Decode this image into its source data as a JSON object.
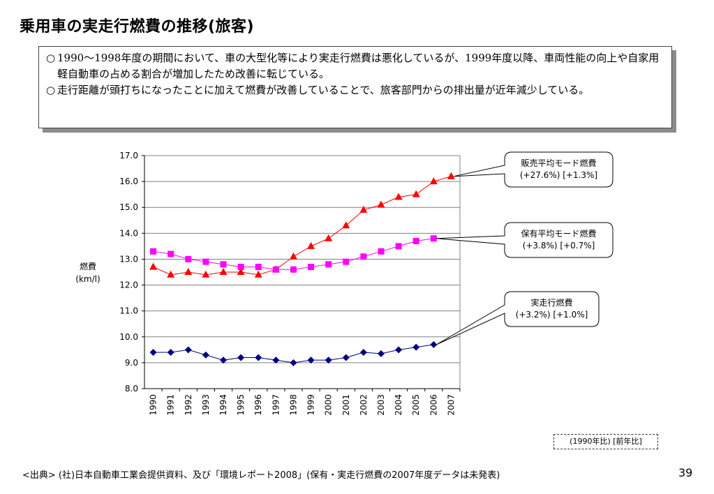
{
  "slide": {
    "title": "乗用車の実走行燃費の推移(旅客)",
    "notes": [
      {
        "mark": "○",
        "text": "1990～1998年度の期間において、車の大型化等により実走行燃費は悪化しているが、1999年度以降、車両性能の向上や自家用軽自動車の占める割合が増加したため改善に転じている。"
      },
      {
        "mark": "○",
        "text": "走行距離が頭打ちになったことに加えて燃費が改善していることで、旅客部門からの排出量が近年減少している。"
      }
    ],
    "legend_note": "(1990年比) [前年比]",
    "source": "<出典> (社)日本自動車工業会提供資料、及び「環境レポート2008」(保有・実走行燃費の2007年度データは未発表)",
    "page_number": "39"
  },
  "chart_data": {
    "type": "line",
    "ylabel": [
      "燃費",
      "(km/l)"
    ],
    "ylim": [
      8.0,
      17.0
    ],
    "yticks": [
      "8.0",
      "9.0",
      "10.0",
      "11.0",
      "12.0",
      "13.0",
      "14.0",
      "15.0",
      "16.0",
      "17.0"
    ],
    "grid": true,
    "x": [
      "1990",
      "1991",
      "1992",
      "1993",
      "1994",
      "1995",
      "1996",
      "1997",
      "1998",
      "1999",
      "2000",
      "2001",
      "2002",
      "2003",
      "2004",
      "2005",
      "2006",
      "2007"
    ],
    "series": [
      {
        "name": "販売平均モード燃費",
        "callout": [
          "販売平均モード燃費",
          "(+27.6%) [+1.3%]"
        ],
        "marker": "triangle",
        "color": "#ff0000",
        "marker_color": "#ff0000",
        "values": [
          12.7,
          12.4,
          12.5,
          12.4,
          12.5,
          12.5,
          12.4,
          12.6,
          13.1,
          13.5,
          13.8,
          14.3,
          14.9,
          15.1,
          15.4,
          15.5,
          16.0,
          16.2
        ]
      },
      {
        "name": "保有平均モード燃費",
        "callout": [
          "保有平均モード燃費",
          "(+3.8%) [+0.7%]"
        ],
        "marker": "square",
        "color": "#ff00ff",
        "marker_color": "#ff00ff",
        "values": [
          13.3,
          13.2,
          13.0,
          12.9,
          12.8,
          12.7,
          12.7,
          12.6,
          12.6,
          12.7,
          12.8,
          12.9,
          13.1,
          13.3,
          13.5,
          13.7,
          13.8,
          null
        ]
      },
      {
        "name": "実走行燃費",
        "callout": [
          "実走行燃費",
          "(+3.2%) [+1.0%]"
        ],
        "marker": "diamond",
        "color": "#000080",
        "marker_color": "#000080",
        "values": [
          9.4,
          9.4,
          9.5,
          9.3,
          9.1,
          9.2,
          9.2,
          9.1,
          9.0,
          9.1,
          9.1,
          9.2,
          9.4,
          9.35,
          9.5,
          9.6,
          9.7,
          null
        ]
      }
    ]
  }
}
